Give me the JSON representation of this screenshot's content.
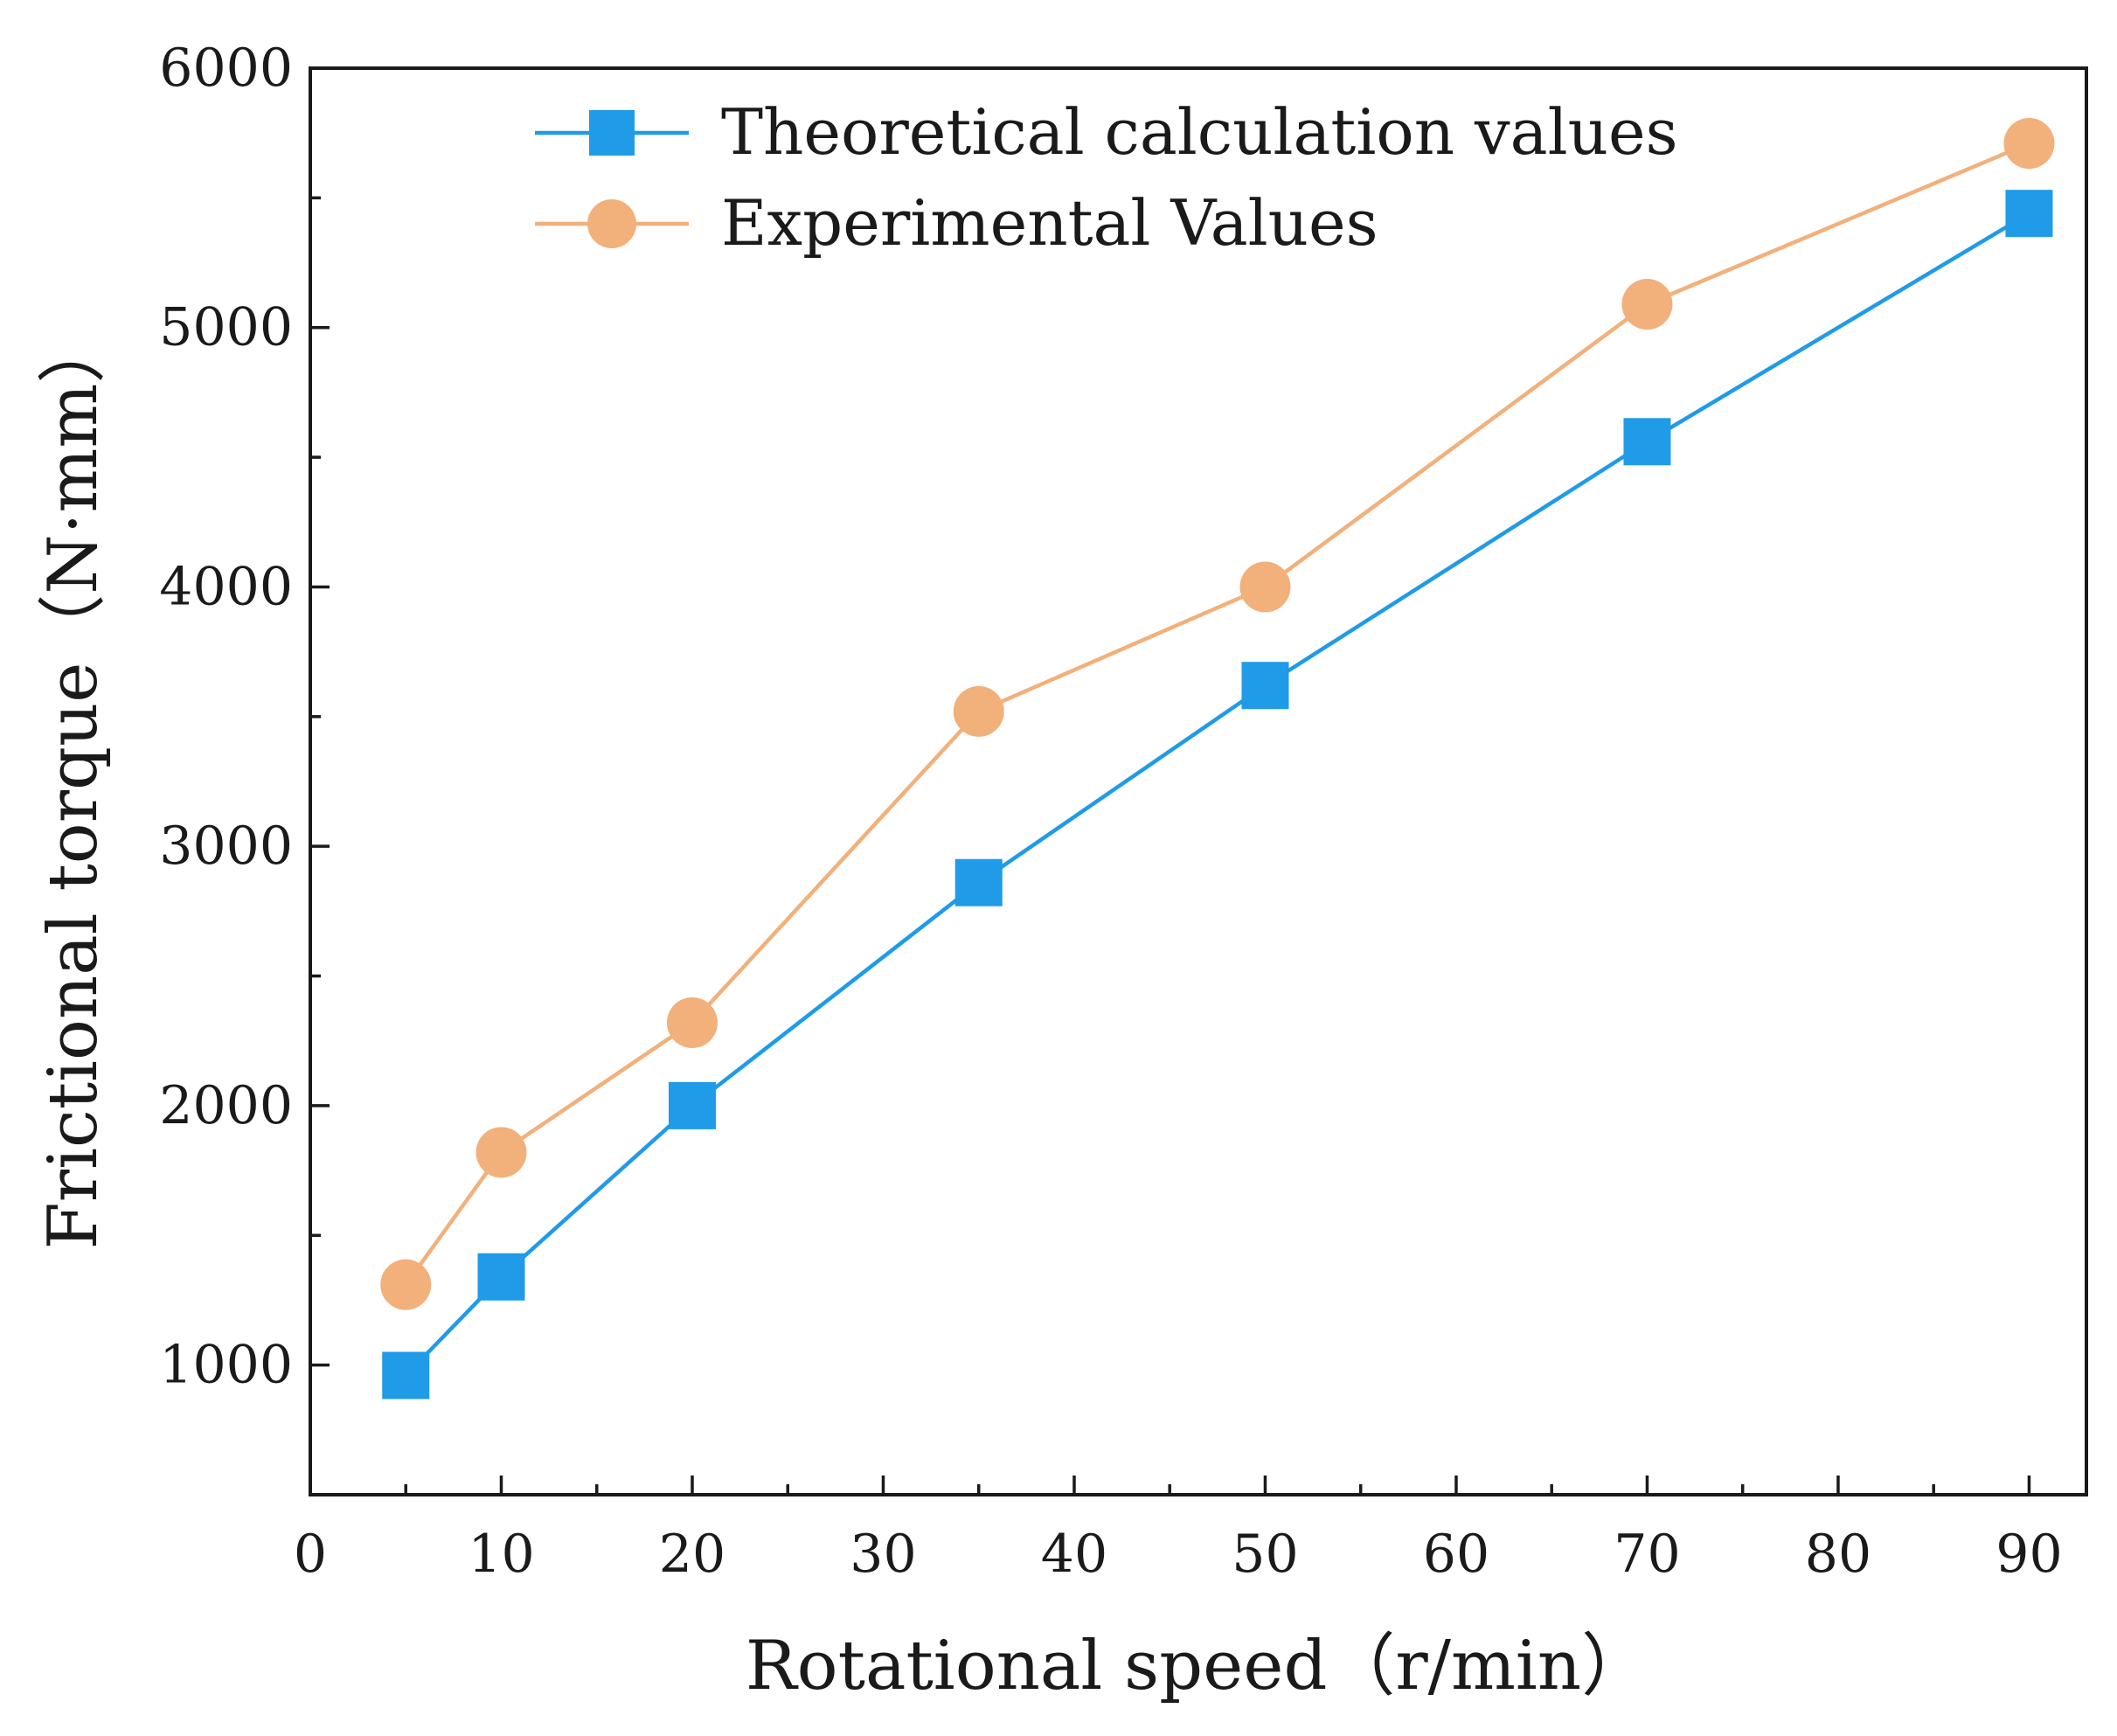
{
  "chart_data": {
    "type": "line",
    "title": "",
    "xlabel": "Rotational speed（r/min）",
    "ylabel": "Frictional torque（N·mm）",
    "xlim": [
      0,
      93
    ],
    "ylim": [
      500,
      6000
    ],
    "x_ticks": [
      0,
      10,
      20,
      30,
      40,
      50,
      60,
      70,
      80,
      90
    ],
    "x_tick_labels": [
      "0",
      "10",
      "20",
      "30",
      "40",
      "50",
      "60",
      "70",
      "80",
      "90"
    ],
    "x_minor_ticks": [
      5,
      15,
      25,
      35,
      45,
      55,
      65,
      75,
      85
    ],
    "y_ticks": [
      1000,
      2000,
      3000,
      4000,
      5000,
      6000
    ],
    "y_tick_labels": [
      "1000",
      "2000",
      "3000",
      "4000",
      "5000",
      "6000"
    ],
    "y_minor_ticks": [
      1500,
      2500,
      3500,
      4500,
      5500
    ],
    "grid": false,
    "legend_position": "top-center",
    "series": [
      {
        "name": "Theoretical calculation values",
        "color": "#1f9be8",
        "marker": "square",
        "x": [
          5,
          10,
          20,
          35,
          50,
          70,
          90
        ],
        "values": [
          960,
          1340,
          2000,
          2860,
          3620,
          4560,
          5440
        ]
      },
      {
        "name": "Experimental Values",
        "color": "#f2b07b",
        "marker": "circle",
        "x": [
          5,
          10,
          20,
          35,
          50,
          70,
          90
        ],
        "values": [
          1310,
          1820,
          2320,
          3520,
          4000,
          5090,
          5710
        ]
      }
    ]
  }
}
